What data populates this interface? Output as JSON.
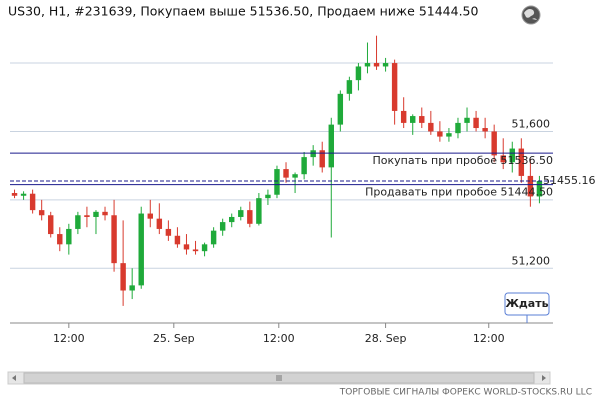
{
  "chart_data": {
    "type": "candlestick",
    "title": "US30, H1, #231639, Покупаем выше 51536.50, Продаем ниже 51444.50",
    "open": [
      51420,
      51412,
      51418,
      51370,
      51355,
      51300,
      51270,
      51315,
      51355,
      51350,
      51365,
      51355,
      51215,
      51135,
      51150,
      51360,
      51345,
      51315,
      51295,
      51270,
      51255,
      51250,
      51270,
      51310,
      51335,
      51350,
      51370,
      51330,
      51405,
      51415,
      51490,
      51465,
      51475,
      51525,
      51545,
      51495,
      51620,
      51710,
      51750,
      51790,
      51800,
      51790,
      51800,
      51660,
      51625,
      51645,
      51625,
      51600,
      51585,
      51595,
      51625,
      51640,
      51610,
      51600,
      51530,
      51510,
      51550,
      51470,
      51410
    ],
    "high": [
      51430,
      51425,
      51430,
      51400,
      51365,
      51320,
      51330,
      51365,
      51380,
      51370,
      51380,
      51400,
      51340,
      51200,
      51380,
      51400,
      51390,
      51340,
      51320,
      51300,
      51280,
      51275,
      51320,
      51345,
      51360,
      51380,
      51395,
      51420,
      51430,
      51500,
      51510,
      51480,
      51540,
      51560,
      51570,
      51640,
      51720,
      51760,
      51800,
      51860,
      51880,
      51815,
      51810,
      51700,
      51650,
      51670,
      51660,
      51630,
      51610,
      51640,
      51670,
      51660,
      51640,
      51620,
      51580,
      51570,
      51580,
      51520,
      51470
    ],
    "low": [
      51405,
      51400,
      51360,
      51340,
      51290,
      51250,
      51240,
      51300,
      51320,
      51300,
      51340,
      51190,
      51090,
      51110,
      51140,
      51320,
      51300,
      51280,
      51260,
      51240,
      51240,
      51235,
      51260,
      51295,
      51320,
      51340,
      51320,
      51325,
      51385,
      51405,
      51450,
      51420,
      51460,
      51500,
      51480,
      51290,
      51600,
      51690,
      51720,
      51770,
      51780,
      51775,
      51620,
      51610,
      51590,
      51610,
      51590,
      51570,
      51570,
      51580,
      51600,
      51600,
      51580,
      51510,
      51490,
      51480,
      51450,
      51380,
      51390
    ],
    "close": [
      51412,
      51418,
      51370,
      51355,
      51300,
      51270,
      51315,
      51355,
      51350,
      51365,
      51355,
      51215,
      51135,
      51150,
      51360,
      51345,
      51315,
      51295,
      51270,
      51255,
      51250,
      51270,
      51310,
      51335,
      51350,
      51370,
      51330,
      51405,
      51415,
      51490,
      51465,
      51475,
      51525,
      51545,
      51495,
      51620,
      51710,
      51750,
      51790,
      51800,
      51790,
      51800,
      51660,
      51625,
      51645,
      51625,
      51600,
      51585,
      51595,
      51625,
      51640,
      51610,
      51600,
      51530,
      51510,
      51550,
      51470,
      51410,
      51455.16
    ],
    "up_color": "#1faa3a",
    "down_color": "#d83a2e",
    "ylim": [
      51040,
      51920
    ],
    "yticks": [
      {
        "value": 51200,
        "label": "51,200"
      },
      {
        "value": 51400,
        "label": null
      },
      {
        "value": 51600,
        "label": "51,600"
      },
      {
        "value": 51800,
        "label": null
      }
    ],
    "xlim": [
      -0.5,
      59.5
    ],
    "xticks": [
      {
        "value": 6,
        "label": "12:00"
      },
      {
        "value": 17.6,
        "label": "25. Sep"
      },
      {
        "value": 29.2,
        "label": "12:00"
      },
      {
        "value": 41,
        "label": "28. Sep"
      },
      {
        "value": 52.4,
        "label": "12:00"
      }
    ],
    "grid": true,
    "levels": [
      {
        "name": "Покупать при пробое 51536.50",
        "value": 51536.5,
        "color": "#1a1a8c",
        "style": "solid"
      },
      {
        "name": "Продавать при пробое 51444.50",
        "value": 51444.5,
        "color": "#1a1a8c",
        "style": "solid"
      }
    ],
    "current": {
      "value": 51455.16,
      "label": "51455.16",
      "color": "#1a1a8c"
    },
    "button": "Ждать",
    "footer": "ТОРГОВЫЕ СИГНАЛЫ ФОРЕКС WORLD-STOCKS.RU LLC"
  }
}
